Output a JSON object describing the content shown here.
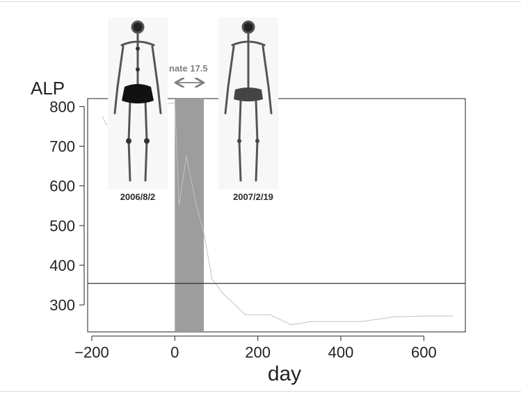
{
  "chart_data": {
    "type": "line",
    "ylabel": "ALP",
    "xlabel": "day",
    "xlim": [
      -210,
      700
    ],
    "ylim": [
      232,
      820
    ],
    "xticks": [
      -200,
      0,
      200,
      400,
      600
    ],
    "xtick_labels": [
      "−200",
      "0",
      "200",
      "400",
      "600"
    ],
    "yticks": [
      300,
      400,
      500,
      600,
      700,
      800
    ],
    "yticks_labels": [
      "300",
      "400",
      "500",
      "600",
      "700",
      "800"
    ],
    "grid": false,
    "series": [
      {
        "x": [
          -175,
          -165,
          -100,
          -50,
          0,
          10,
          28,
          50,
          70,
          90,
          115,
          170,
          230,
          280,
          330,
          450,
          530,
          610,
          670
        ],
        "y": [
          775,
          755,
          770,
          800,
          810,
          550,
          675,
          560,
          480,
          365,
          330,
          275,
          275,
          250,
          258,
          258,
          270,
          272,
          272
        ],
        "color": "#c2c2c2"
      }
    ],
    "threshold": {
      "y": 354,
      "color": "#333333"
    },
    "shaded_interval": {
      "x_start": 0,
      "x_end": 70,
      "color": "#9d9d9d"
    },
    "annotations": {
      "treatment_text": "nate 17.5",
      "treatment_arrow": "double-headed horizontal arrow",
      "scans": [
        {
          "date": "2006/8/2",
          "image": "bone-scan-whole-body"
        },
        {
          "date": "2007/2/19",
          "image": "bone-scan-whole-body"
        }
      ]
    }
  }
}
